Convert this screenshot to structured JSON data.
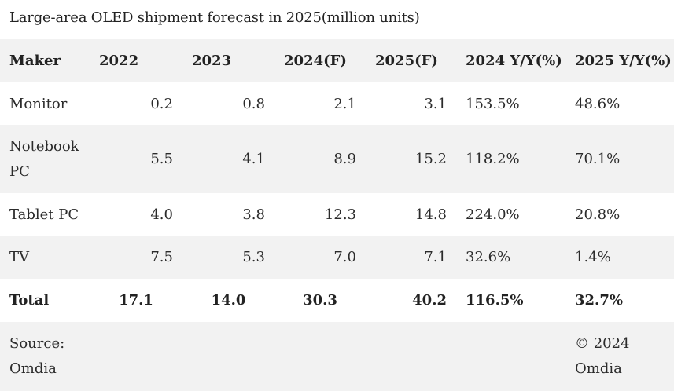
{
  "caption": "Large-area OLED shipment forecast in 2025(million units)",
  "headers": [
    "Maker",
    "2022",
    "2023",
    "2024(F)",
    "2025(F)",
    "2024 Y/Y(%)",
    "2025 Y/Y(%)"
  ],
  "rows": [
    {
      "maker": "Monitor",
      "c2022": "0.2",
      "c2023": "0.8",
      "c2024": "2.1",
      "c2025": "3.1",
      "yoy2024": "153.5%",
      "yoy2025": "48.6%"
    },
    {
      "maker": "Notebook PC",
      "c2022": "5.5",
      "c2023": "4.1",
      "c2024": "8.9",
      "c2025": "15.2",
      "yoy2024": "118.2%",
      "yoy2025": "70.1%"
    },
    {
      "maker": "Tablet PC",
      "c2022": "4.0",
      "c2023": "3.8",
      "c2024": "12.3",
      "c2025": "14.8",
      "yoy2024": "224.0%",
      "yoy2025": "20.8%"
    },
    {
      "maker": "TV",
      "c2022": "7.5",
      "c2023": "5.3",
      "c2024": "7.0",
      "c2025": "7.1",
      "yoy2024": "32.6%",
      "yoy2025": "1.4%"
    }
  ],
  "total": {
    "maker": "Total",
    "c2022": "17.1",
    "c2023": "14.0",
    "c2024": "30.3",
    "c2025": "40.2",
    "yoy2024": "116.5%",
    "yoy2025": "32.7%"
  },
  "footer": {
    "source": "Source: Omdia",
    "copyright": "© 2024 Omdia"
  },
  "colors": {
    "shade": "#f2f2f2",
    "text": "#2b2b2b"
  }
}
